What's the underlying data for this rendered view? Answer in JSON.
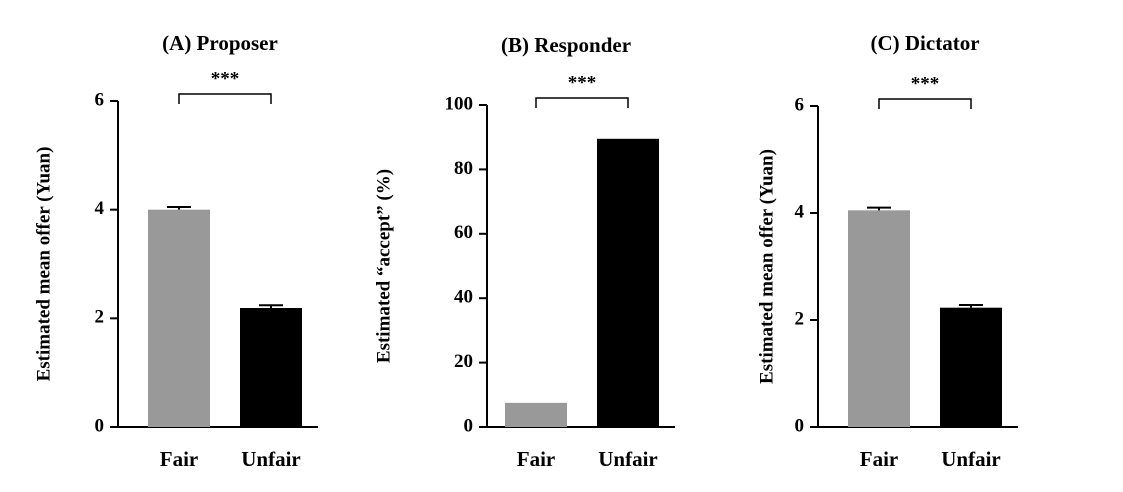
{
  "chart_data": [
    {
      "type": "bar",
      "title": "(A)  Proposer",
      "y_label": "Estimated mean offer (Yuan)",
      "categories": [
        "Fair",
        "Unfair"
      ],
      "values": [
        4.0,
        2.19
      ],
      "errors": [
        0.05,
        0.05
      ],
      "colors": [
        "#999999",
        "#000000"
      ],
      "ylim": [
        0,
        6
      ],
      "yticks": [
        0,
        2,
        4,
        6
      ],
      "significance": "***"
    },
    {
      "type": "bar",
      "title": "(B) Responder",
      "y_label": "Estimated “accept” (%)",
      "categories": [
        "Fair",
        "Unfair"
      ],
      "values": [
        7.5,
        89.5
      ],
      "colors": [
        "#999999",
        "#000000"
      ],
      "ylim": [
        0,
        100
      ],
      "yticks": [
        0,
        20,
        40,
        60,
        80,
        100
      ],
      "significance": "***"
    },
    {
      "type": "bar",
      "title": "(C)  Dictator",
      "y_label": "Estimated mean offer (Yuan)",
      "categories": [
        "Fair",
        "Unfair"
      ],
      "values": [
        4.05,
        2.23
      ],
      "errors": [
        0.05,
        0.05
      ],
      "colors": [
        "#999999",
        "#000000"
      ],
      "ylim": [
        0,
        6
      ],
      "yticks": [
        0,
        2,
        4,
        6
      ],
      "significance": "***"
    }
  ]
}
